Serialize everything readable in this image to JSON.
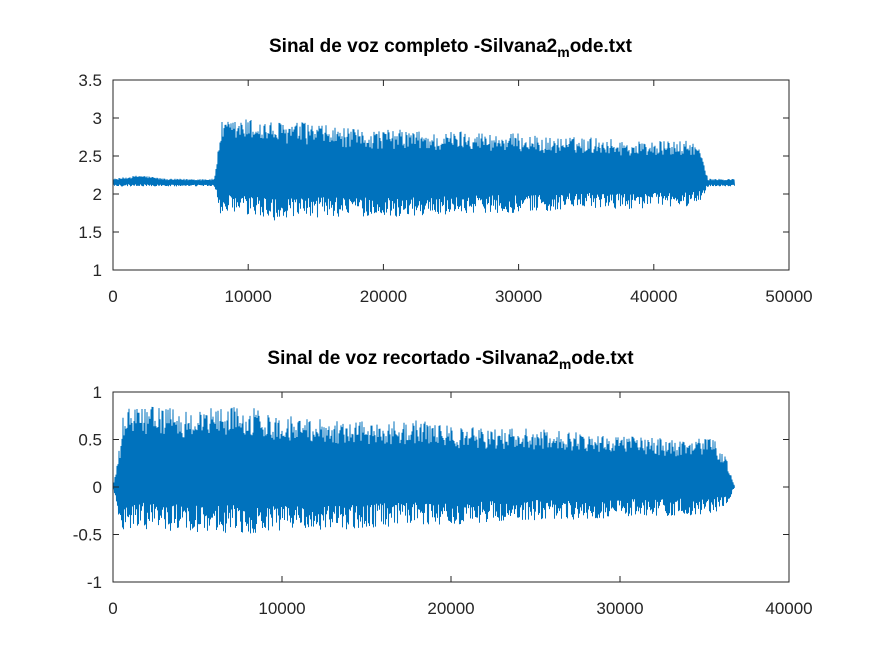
{
  "chart_data": [
    {
      "type": "line",
      "title": {
        "main": "Sinal de voz completo -Silvana2",
        "sub": "m",
        "rest": "ode.txt"
      },
      "xlim": [
        0,
        50000
      ],
      "ylim": [
        1,
        3.5
      ],
      "xticks": [
        0,
        10000,
        20000,
        30000,
        40000,
        50000
      ],
      "yticks": [
        1,
        1.5,
        2,
        2.5,
        3,
        3.5
      ],
      "xtick_labels": [
        "0",
        "10000",
        "20000",
        "30000",
        "40000",
        "50000"
      ],
      "ytick_labels": [
        "1",
        "1.5",
        "2",
        "2.5",
        "3",
        "3.5"
      ],
      "color": "#0072bd",
      "series": [
        {
          "x": [
            0,
            2000,
            4000,
            6000,
            7000,
            7500,
            8000,
            10000,
            12000,
            14000,
            16000,
            18000,
            20000,
            22000,
            24000,
            26000,
            28000,
            30000,
            32000,
            34000,
            36000,
            38000,
            40000,
            42000,
            43000,
            43500,
            44000,
            45000,
            46000
          ],
          "upper": [
            2.2,
            2.25,
            2.2,
            2.2,
            2.2,
            2.2,
            2.95,
            3.0,
            2.95,
            2.95,
            2.9,
            2.85,
            2.85,
            2.85,
            2.8,
            2.85,
            2.8,
            2.8,
            2.75,
            2.75,
            2.75,
            2.7,
            2.7,
            2.7,
            2.7,
            2.55,
            2.2,
            2.2,
            2.2
          ],
          "lower": [
            2.1,
            2.1,
            2.1,
            2.1,
            2.1,
            2.1,
            1.7,
            1.7,
            1.65,
            1.65,
            1.7,
            1.7,
            1.7,
            1.7,
            1.72,
            1.75,
            1.75,
            1.75,
            1.77,
            1.8,
            1.8,
            1.8,
            1.82,
            1.82,
            1.85,
            1.9,
            2.1,
            2.1,
            2.1
          ]
        }
      ]
    },
    {
      "type": "line",
      "title": {
        "main": "Sinal de voz recortado -Silvana2",
        "sub": "m",
        "rest": "ode.txt"
      },
      "xlim": [
        0,
        40000
      ],
      "ylim": [
        -1,
        1
      ],
      "xticks": [
        0,
        10000,
        20000,
        30000,
        40000
      ],
      "yticks": [
        -1,
        -0.5,
        0,
        0.5,
        1
      ],
      "xtick_labels": [
        "0",
        "10000",
        "20000",
        "30000",
        "40000"
      ],
      "ytick_labels": [
        "-1",
        "-0.5",
        "0",
        "0.5",
        "1"
      ],
      "color": "#0072bd",
      "series": [
        {
          "x": [
            0,
            300,
            600,
            1000,
            2000,
            3000,
            4000,
            6000,
            8000,
            10000,
            12000,
            14000,
            16000,
            18000,
            20000,
            22000,
            24000,
            26000,
            28000,
            30000,
            32000,
            34000,
            35500,
            36300,
            36800
          ],
          "upper": [
            0.0,
            0.3,
            0.75,
            0.85,
            0.85,
            0.85,
            0.8,
            0.85,
            0.85,
            0.75,
            0.75,
            0.7,
            0.7,
            0.7,
            0.65,
            0.62,
            0.62,
            0.6,
            0.58,
            0.55,
            0.52,
            0.5,
            0.52,
            0.3,
            0.0
          ],
          "lower": [
            0.0,
            -0.3,
            -0.45,
            -0.45,
            -0.45,
            -0.45,
            -0.48,
            -0.48,
            -0.5,
            -0.48,
            -0.45,
            -0.45,
            -0.42,
            -0.4,
            -0.4,
            -0.38,
            -0.35,
            -0.35,
            -0.35,
            -0.32,
            -0.32,
            -0.3,
            -0.28,
            -0.2,
            0.0
          ]
        }
      ]
    }
  ]
}
